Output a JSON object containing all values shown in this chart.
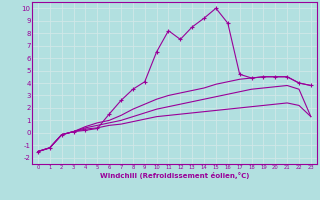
{
  "xlabel": "Windchill (Refroidissement éolien,°C)",
  "bg_color": "#b2e0e0",
  "grid_color": "#d0e8e8",
  "line_color": "#990099",
  "xlim": [
    -0.5,
    23.5
  ],
  "ylim": [
    -2.5,
    10.5
  ],
  "xticks": [
    0,
    1,
    2,
    3,
    4,
    5,
    6,
    7,
    8,
    9,
    10,
    11,
    12,
    13,
    14,
    15,
    16,
    17,
    18,
    19,
    20,
    21,
    22,
    23
  ],
  "yticks": [
    -2,
    -1,
    0,
    1,
    2,
    3,
    4,
    5,
    6,
    7,
    8,
    9,
    10
  ],
  "curves": [
    {
      "x": [
        0,
        1,
        2,
        3,
        4,
        5,
        6,
        7,
        8,
        9,
        10,
        11,
        12,
        13,
        14,
        15,
        16,
        17,
        18,
        19,
        20,
        21,
        22,
        23
      ],
      "y": [
        -1.5,
        -1.2,
        -0.15,
        0.1,
        0.2,
        0.35,
        1.5,
        2.6,
        3.5,
        4.1,
        6.5,
        8.2,
        7.5,
        8.5,
        9.2,
        10.0,
        8.8,
        4.7,
        4.4,
        4.5,
        4.5,
        4.5,
        4.0,
        3.8
      ],
      "has_markers": true
    },
    {
      "x": [
        0,
        1,
        2,
        3,
        4,
        5,
        6,
        7,
        8,
        9,
        10,
        11,
        12,
        13,
        14,
        15,
        16,
        17,
        18,
        19,
        20,
        21,
        22,
        23
      ],
      "y": [
        -1.5,
        -1.2,
        -0.15,
        0.1,
        0.5,
        0.8,
        1.0,
        1.4,
        1.9,
        2.3,
        2.7,
        3.0,
        3.2,
        3.4,
        3.6,
        3.9,
        4.1,
        4.3,
        4.4,
        4.5,
        4.5,
        4.5,
        4.0,
        3.8
      ],
      "has_markers": false
    },
    {
      "x": [
        0,
        1,
        2,
        3,
        4,
        5,
        6,
        7,
        8,
        9,
        10,
        11,
        12,
        13,
        14,
        15,
        16,
        17,
        18,
        19,
        20,
        21,
        22,
        23
      ],
      "y": [
        -1.5,
        -1.2,
        -0.15,
        0.1,
        0.4,
        0.6,
        0.8,
        1.0,
        1.3,
        1.6,
        1.9,
        2.1,
        2.3,
        2.5,
        2.7,
        2.9,
        3.1,
        3.3,
        3.5,
        3.6,
        3.7,
        3.8,
        3.5,
        1.3
      ],
      "has_markers": false
    },
    {
      "x": [
        0,
        1,
        2,
        3,
        4,
        5,
        6,
        7,
        8,
        9,
        10,
        11,
        12,
        13,
        14,
        15,
        16,
        17,
        18,
        19,
        20,
        21,
        22,
        23
      ],
      "y": [
        -1.5,
        -1.2,
        -0.15,
        0.1,
        0.3,
        0.4,
        0.6,
        0.7,
        0.9,
        1.1,
        1.3,
        1.4,
        1.5,
        1.6,
        1.7,
        1.8,
        1.9,
        2.0,
        2.1,
        2.2,
        2.3,
        2.4,
        2.2,
        1.3
      ],
      "has_markers": false
    }
  ]
}
